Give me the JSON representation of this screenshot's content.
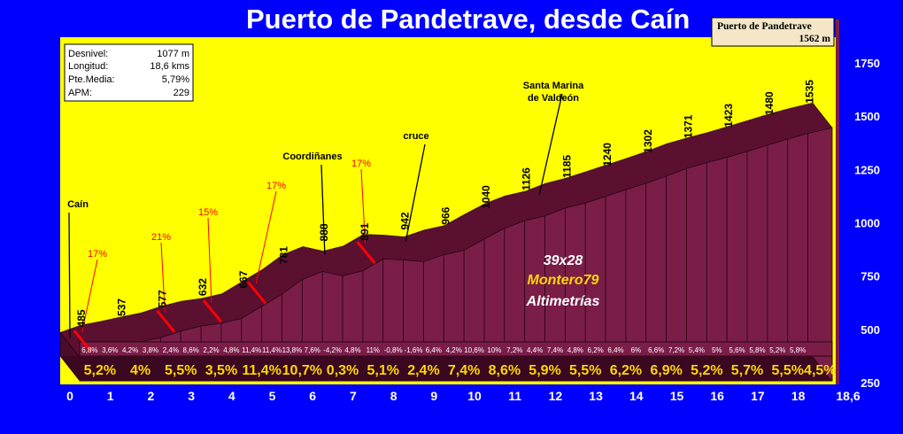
{
  "title": "Puerto de Pandetrave, desde Caín",
  "stats": [
    {
      "label": "Desnivel:",
      "value": "1077 m"
    },
    {
      "label": "Longitud:",
      "value": "18,6 kms"
    },
    {
      "label": "Pte.Media:",
      "value": "5,79%"
    },
    {
      "label": "APM:",
      "value": "229"
    }
  ],
  "summit": {
    "name": "Puerto de Pandetrave",
    "altitude": "1562 m"
  },
  "credits": {
    "gear": "39x28",
    "author": "Montero79",
    "brand": "Altimetrías"
  },
  "colors": {
    "background": "#0000ff",
    "plot": "#ffff00",
    "profile": "#7a1e48",
    "profile_top": "#5b1030",
    "grade_text": "#ffd700",
    "red_marks": "#ff0000"
  },
  "chart_data": {
    "type": "area",
    "xlabel": "",
    "ylabel": "",
    "xlim": [
      0,
      18.6
    ],
    "ylim": [
      250,
      1800
    ],
    "yticks": [
      250,
      500,
      750,
      1000,
      1250,
      1500,
      1750
    ],
    "xticks": [
      "0",
      "1",
      "2",
      "3",
      "4",
      "5",
      "6",
      "7",
      "8",
      "9",
      "10",
      "11",
      "12",
      "13",
      "14",
      "15",
      "16",
      "17",
      "18",
      "18,6"
    ],
    "profile": [
      {
        "km": 0,
        "alt": 485
      },
      {
        "km": 0.5,
        "alt": 519
      },
      {
        "km": 1,
        "alt": 537
      },
      {
        "km": 1.5,
        "alt": 558
      },
      {
        "km": 2,
        "alt": 577
      },
      {
        "km": 2.5,
        "alt": 608
      },
      {
        "km": 3,
        "alt": 632
      },
      {
        "km": 3.5,
        "alt": 645
      },
      {
        "km": 4,
        "alt": 667
      },
      {
        "km": 4.5,
        "alt": 724
      },
      {
        "km": 5,
        "alt": 781
      },
      {
        "km": 5.5,
        "alt": 850
      },
      {
        "km": 6,
        "alt": 888
      },
      {
        "km": 6.5,
        "alt": 867
      },
      {
        "km": 7,
        "alt": 891
      },
      {
        "km": 7.5,
        "alt": 946
      },
      {
        "km": 8,
        "alt": 942
      },
      {
        "km": 8.5,
        "alt": 934
      },
      {
        "km": 9,
        "alt": 966
      },
      {
        "km": 9.5,
        "alt": 987
      },
      {
        "km": 10,
        "alt": 1040
      },
      {
        "km": 10.5,
        "alt": 1090
      },
      {
        "km": 11,
        "alt": 1126
      },
      {
        "km": 11.5,
        "alt": 1148
      },
      {
        "km": 12,
        "alt": 1185
      },
      {
        "km": 12.5,
        "alt": 1209
      },
      {
        "km": 13,
        "alt": 1240
      },
      {
        "km": 13.5,
        "alt": 1271
      },
      {
        "km": 14,
        "alt": 1302
      },
      {
        "km": 14.5,
        "alt": 1335
      },
      {
        "km": 15,
        "alt": 1371
      },
      {
        "km": 15.5,
        "alt": 1398
      },
      {
        "km": 16,
        "alt": 1423
      },
      {
        "km": 16.5,
        "alt": 1451
      },
      {
        "km": 17,
        "alt": 1480
      },
      {
        "km": 17.5,
        "alt": 1509
      },
      {
        "km": 18,
        "alt": 1535
      },
      {
        "km": 18.6,
        "alt": 1562
      }
    ],
    "altitude_labels": [
      {
        "km": 0,
        "text": "485"
      },
      {
        "km": 1,
        "text": "537"
      },
      {
        "km": 2,
        "text": "577"
      },
      {
        "km": 3,
        "text": "632"
      },
      {
        "km": 4,
        "text": "667"
      },
      {
        "km": 5,
        "text": "781"
      },
      {
        "km": 6,
        "text": "888"
      },
      {
        "km": 7,
        "text": "891"
      },
      {
        "km": 8,
        "text": "942"
      },
      {
        "km": 9,
        "text": "966"
      },
      {
        "km": 10,
        "text": "1040"
      },
      {
        "km": 11,
        "text": "1126"
      },
      {
        "km": 12,
        "text": "1185"
      },
      {
        "km": 13,
        "text": "1240"
      },
      {
        "km": 14,
        "text": "1302"
      },
      {
        "km": 15,
        "text": "1371"
      },
      {
        "km": 16,
        "text": "1423"
      },
      {
        "km": 17,
        "text": "1480"
      },
      {
        "km": 18,
        "text": "1535"
      }
    ],
    "half_km_grades": [
      "6,8%",
      "3,6%",
      "4,2%",
      "3,8%",
      "2,4%",
      "8,6%",
      "2,2%",
      "4,8%",
      "11,4%",
      "11,4%",
      "13,8%",
      "7,6%",
      "-4,2%",
      "4,8%",
      "11%",
      "-0,8%",
      "-1,6%",
      "6,4%",
      "4,2%",
      "10,6%",
      "10%",
      "7,2%",
      "4,4%",
      "7,4%",
      "4,8%",
      "6,2%",
      "6,4%",
      "6%",
      "6,6%",
      "7,2%",
      "5,4%",
      "5%",
      "5,6%",
      "5,8%",
      "5,2%",
      "5,8%"
    ],
    "km_grades": [
      "5,2%",
      "4%",
      "5,5%",
      "3,5%",
      "11,4%",
      "10,7%",
      "0,3%",
      "5,1%",
      "2,4%",
      "7,4%",
      "8,6%",
      "5,9%",
      "5,5%",
      "6,2%",
      "6,9%",
      "5,2%",
      "5,7%",
      "5,5%",
      "4,5%"
    ],
    "places": [
      {
        "name": "Caín",
        "km": 0
      },
      {
        "name": "Coordiñanes",
        "km": 6.3
      },
      {
        "name": "cruce",
        "km": 8.3
      },
      {
        "name": "Santa Marina de Valdeón",
        "km": 11.6
      }
    ],
    "max_grade_marks": [
      {
        "km": 0.25,
        "text": "17%"
      },
      {
        "km": 2.3,
        "text": "21%"
      },
      {
        "km": 3.45,
        "text": "15%"
      },
      {
        "km": 4.55,
        "text": "17%"
      },
      {
        "km": 7.25,
        "text": "17%"
      }
    ]
  }
}
